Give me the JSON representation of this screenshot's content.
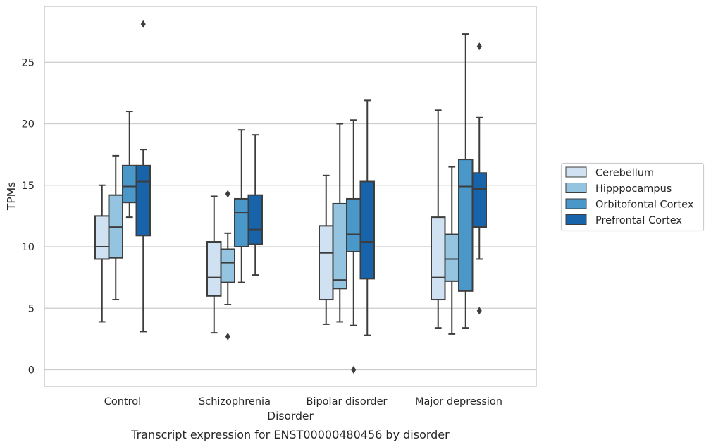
{
  "caption": "Transcript expression for ENST00000480456 by disorder",
  "colors": {
    "Cerebellum": "#d0e1f2",
    "Hipppocampus": "#94c4df",
    "Orbitofontal Cortex": "#4a98c9",
    "Prefrontal Cortex": "#1764ab",
    "box_edge": "#3d3d3d",
    "grid": "#cccccc",
    "frame": "#cccccc"
  },
  "chart_data": {
    "type": "box",
    "title": "",
    "xlabel": "Disorder",
    "ylabel": "TPMs",
    "ylim": [
      -1.3,
      29.0
    ],
    "yticks": [
      0,
      5,
      10,
      15,
      20,
      25
    ],
    "grid": "horizontal",
    "legend_position": "right",
    "categories": [
      "Control",
      "Schizophrenia",
      "Bipolar disorder",
      "Major depression"
    ],
    "series": [
      {
        "name": "Cerebellum",
        "boxes": [
          {
            "whisker_low": 3.9,
            "q1": 9.0,
            "median": 10.0,
            "q3": 12.5,
            "whisker_high": 15.0,
            "outliers": []
          },
          {
            "whisker_low": 3.0,
            "q1": 6.0,
            "median": 7.5,
            "q3": 10.4,
            "whisker_high": 14.1,
            "outliers": []
          },
          {
            "whisker_low": 3.7,
            "q1": 5.7,
            "median": 9.5,
            "q3": 11.7,
            "whisker_high": 15.8,
            "outliers": []
          },
          {
            "whisker_low": 3.4,
            "q1": 5.7,
            "median": 7.5,
            "q3": 12.4,
            "whisker_high": 21.1,
            "outliers": []
          }
        ]
      },
      {
        "name": "Hipppocampus",
        "boxes": [
          {
            "whisker_low": 5.7,
            "q1": 9.1,
            "median": 11.6,
            "q3": 14.2,
            "whisker_high": 17.4,
            "outliers": []
          },
          {
            "whisker_low": 5.3,
            "q1": 7.1,
            "median": 8.7,
            "q3": 9.8,
            "whisker_high": 11.1,
            "outliers": [
              2.7,
              14.3
            ]
          },
          {
            "whisker_low": 3.9,
            "q1": 6.6,
            "median": 7.3,
            "q3": 13.5,
            "whisker_high": 20.0,
            "outliers": []
          },
          {
            "whisker_low": 2.9,
            "q1": 7.2,
            "median": 9.0,
            "q3": 11.0,
            "whisker_high": 16.5,
            "outliers": []
          }
        ]
      },
      {
        "name": "Orbitofontal Cortex",
        "boxes": [
          {
            "whisker_low": 12.4,
            "q1": 13.6,
            "median": 14.9,
            "q3": 16.6,
            "whisker_high": 21.0,
            "outliers": []
          },
          {
            "whisker_low": 7.1,
            "q1": 10.0,
            "median": 12.8,
            "q3": 13.9,
            "whisker_high": 19.5,
            "outliers": []
          },
          {
            "whisker_low": 3.6,
            "q1": 9.6,
            "median": 11.0,
            "q3": 13.9,
            "whisker_high": 20.3,
            "outliers": [
              0.0
            ]
          },
          {
            "whisker_low": 3.4,
            "q1": 6.4,
            "median": 14.9,
            "q3": 17.1,
            "whisker_high": 27.3,
            "outliers": []
          }
        ]
      },
      {
        "name": "Prefrontal Cortex",
        "boxes": [
          {
            "whisker_low": 3.1,
            "q1": 10.9,
            "median": 15.3,
            "q3": 16.6,
            "whisker_high": 17.9,
            "outliers": [
              28.1
            ]
          },
          {
            "whisker_low": 7.7,
            "q1": 10.2,
            "median": 11.4,
            "q3": 14.2,
            "whisker_high": 19.1,
            "outliers": []
          },
          {
            "whisker_low": 2.8,
            "q1": 7.4,
            "median": 10.4,
            "q3": 15.3,
            "whisker_high": 21.9,
            "outliers": []
          },
          {
            "whisker_low": 9.0,
            "q1": 11.6,
            "median": 14.7,
            "q3": 16.0,
            "whisker_high": 20.5,
            "outliers": [
              4.8,
              26.3
            ]
          }
        ]
      }
    ]
  }
}
